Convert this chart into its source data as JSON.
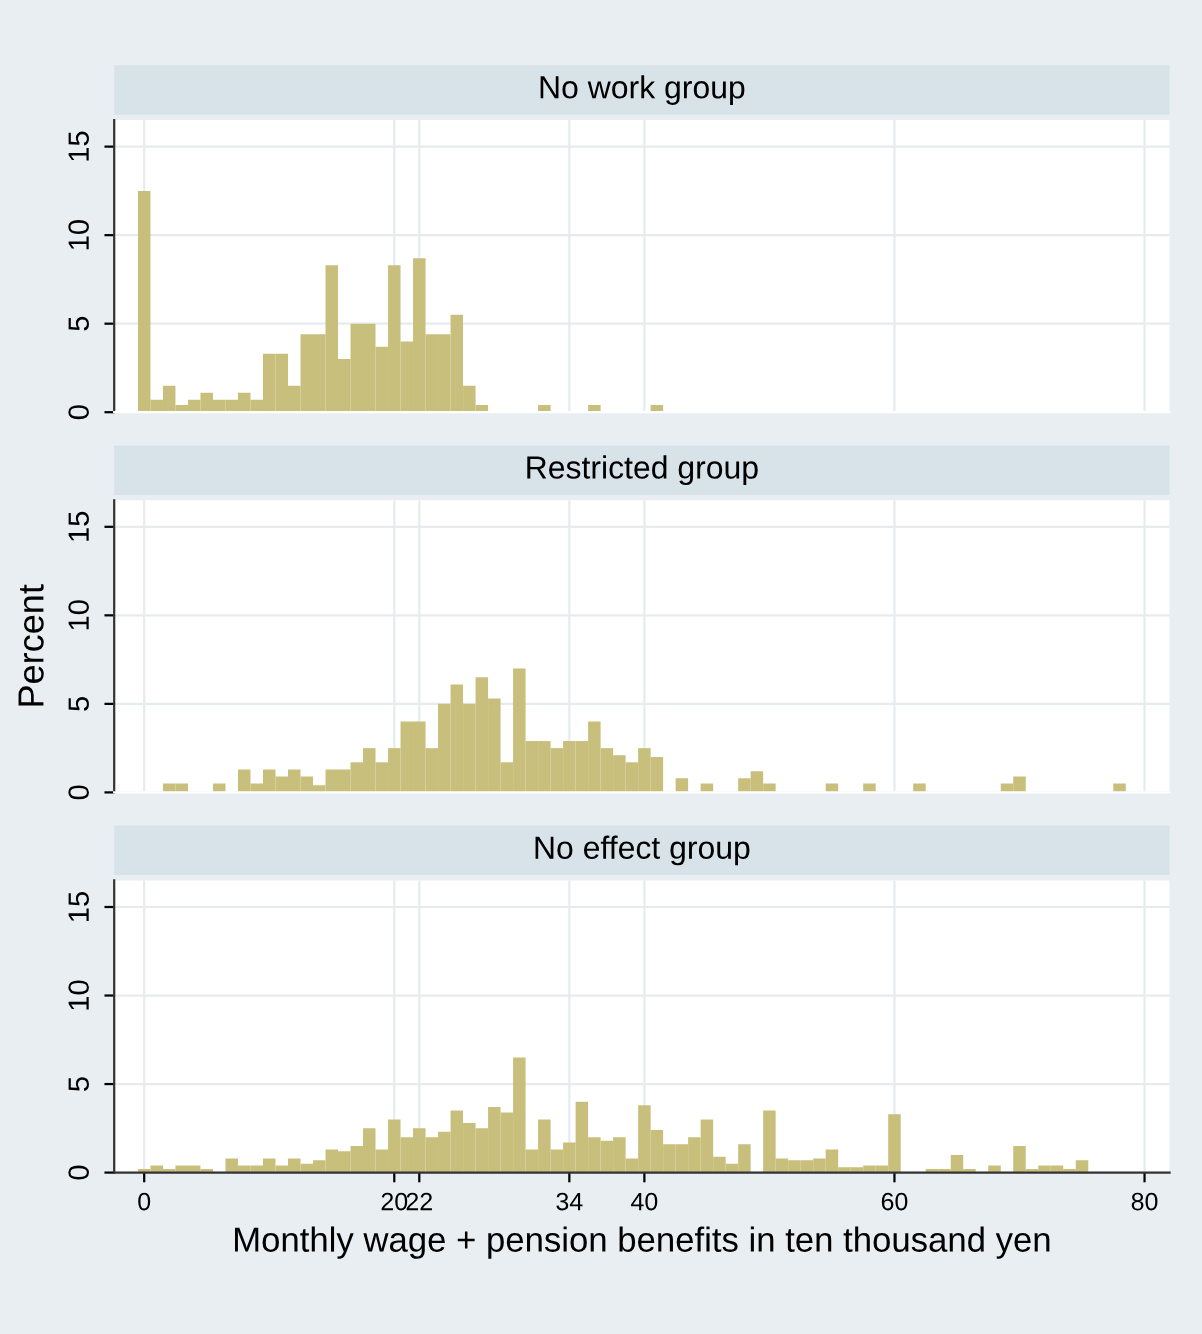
{
  "chart_data": [
    {
      "type": "histogram",
      "title": "No work group",
      "color": "#c8bf7c",
      "grid": true,
      "tick_labels": "y",
      "bins": [
        -0.5,
        0.5,
        1.5,
        2.5,
        3.5,
        4.5,
        5.5,
        6.5,
        7.5,
        8.5,
        9.5,
        10.5,
        11.5,
        12.5,
        13.5,
        14.5,
        15.5,
        16.5,
        17.5,
        18.5,
        19.5,
        20.5,
        21.5,
        22.5,
        23.5,
        24.5,
        25.5,
        26.5,
        27.5,
        28.5,
        29.5,
        30.5,
        31.5,
        32.5,
        33.5,
        34.5,
        35.5,
        36.5,
        37.5,
        38.5,
        39.5,
        40.5,
        41.5,
        42.5,
        43.5,
        44.5,
        45.5,
        46.5,
        47.5,
        48.5,
        49.5,
        50.5,
        51.5,
        52.5,
        53.5,
        54.5,
        55.5,
        56.5,
        57.5,
        58.5,
        59.5,
        60.5,
        61.5,
        62.5,
        63.5,
        64.5,
        65.5,
        66.5,
        67.5,
        68.5,
        69.5,
        70.5,
        71.5,
        72.5,
        73.5,
        74.5,
        75.5,
        76.5,
        77.5,
        78.5
      ],
      "values": [
        12.5,
        0.7,
        1.5,
        0.4,
        0.7,
        1.1,
        0.7,
        0.7,
        1.1,
        0.7,
        3.3,
        3.3,
        1.5,
        4.4,
        4.4,
        8.3,
        3.0,
        5.0,
        5.0,
        3.7,
        8.3,
        4.0,
        8.7,
        4.4,
        4.4,
        5.5,
        1.5,
        0.4,
        0,
        0,
        0,
        0,
        0.4,
        0,
        0,
        0,
        0.4,
        0,
        0,
        0,
        0,
        0.4,
        0,
        0,
        0,
        0,
        0,
        0,
        0,
        0,
        0,
        0,
        0,
        0,
        0,
        0,
        0,
        0,
        0,
        0,
        0,
        0,
        0,
        0,
        0,
        0,
        0,
        0,
        0,
        0,
        0,
        0,
        0,
        0,
        0,
        0,
        0,
        0,
        0
      ],
      "xlim": [
        -2.4,
        82
      ],
      "xticks": [
        0,
        20,
        22,
        34,
        40,
        60,
        80
      ],
      "ylim": [
        0,
        16.5
      ],
      "yticks": [
        0,
        5,
        10,
        15
      ]
    },
    {
      "type": "histogram",
      "title": "Restricted group",
      "ylabel": "Percent",
      "color": "#c8bf7c",
      "grid": true,
      "tick_labels": "y",
      "bins": [
        -0.5,
        0.5,
        1.5,
        2.5,
        3.5,
        4.5,
        5.5,
        6.5,
        7.5,
        8.5,
        9.5,
        10.5,
        11.5,
        12.5,
        13.5,
        14.5,
        15.5,
        16.5,
        17.5,
        18.5,
        19.5,
        20.5,
        21.5,
        22.5,
        23.5,
        24.5,
        25.5,
        26.5,
        27.5,
        28.5,
        29.5,
        30.5,
        31.5,
        32.5,
        33.5,
        34.5,
        35.5,
        36.5,
        37.5,
        38.5,
        39.5,
        40.5,
        41.5,
        42.5,
        43.5,
        44.5,
        45.5,
        46.5,
        47.5,
        48.5,
        49.5,
        50.5,
        51.5,
        52.5,
        53.5,
        54.5,
        55.5,
        56.5,
        57.5,
        58.5,
        59.5,
        60.5,
        61.5,
        62.5,
        63.5,
        64.5,
        65.5,
        66.5,
        67.5,
        68.5,
        69.5,
        70.5,
        71.5,
        72.5,
        73.5,
        74.5,
        75.5,
        76.5,
        77.5,
        78.5
      ],
      "values": [
        0,
        0,
        0.5,
        0.5,
        0,
        0,
        0.5,
        0,
        1.3,
        0.5,
        1.3,
        0.9,
        1.3,
        0.9,
        0.4,
        1.3,
        1.3,
        1.7,
        2.5,
        1.7,
        2.5,
        4.0,
        4.0,
        2.5,
        5.0,
        6.1,
        5.0,
        6.5,
        5.3,
        1.7,
        7.0,
        2.9,
        2.9,
        2.5,
        2.9,
        2.9,
        4.0,
        2.5,
        2.1,
        1.7,
        2.5,
        2.0,
        0,
        0.8,
        0,
        0.5,
        0,
        0,
        0.8,
        1.2,
        0.5,
        0,
        0,
        0,
        0,
        0.5,
        0,
        0,
        0.5,
        0,
        0,
        0,
        0.5,
        0,
        0,
        0,
        0,
        0,
        0,
        0.5,
        0.9,
        0,
        0,
        0,
        0,
        0,
        0,
        0,
        0.5
      ],
      "xlim": [
        -2.4,
        82
      ],
      "xticks": [
        0,
        20,
        22,
        34,
        40,
        60,
        80
      ],
      "ylim": [
        0,
        16.5
      ],
      "yticks": [
        0,
        5,
        10,
        15
      ]
    },
    {
      "type": "histogram",
      "title": "No effect group",
      "xlabel": "Monthly wage + pension benefits in ten thousand yen",
      "color": "#c8bf7c",
      "grid": true,
      "bins": [
        -0.5,
        0.5,
        1.5,
        2.5,
        3.5,
        4.5,
        5.5,
        6.5,
        7.5,
        8.5,
        9.5,
        10.5,
        11.5,
        12.5,
        13.5,
        14.5,
        15.5,
        16.5,
        17.5,
        18.5,
        19.5,
        20.5,
        21.5,
        22.5,
        23.5,
        24.5,
        25.5,
        26.5,
        27.5,
        28.5,
        29.5,
        30.5,
        31.5,
        32.5,
        33.5,
        34.5,
        35.5,
        36.5,
        37.5,
        38.5,
        39.5,
        40.5,
        41.5,
        42.5,
        43.5,
        44.5,
        45.5,
        46.5,
        47.5,
        48.5,
        49.5,
        50.5,
        51.5,
        52.5,
        53.5,
        54.5,
        55.5,
        56.5,
        57.5,
        58.5,
        59.5,
        60.5,
        61.5,
        62.5,
        63.5,
        64.5,
        65.5,
        66.5,
        67.5,
        68.5,
        69.5,
        70.5,
        71.5,
        72.5,
        73.5,
        74.5,
        75.5,
        76.5,
        77.5,
        78.5
      ],
      "values": [
        0.2,
        0.4,
        0.2,
        0.4,
        0.4,
        0.2,
        0,
        0.8,
        0.4,
        0.4,
        0.8,
        0.4,
        0.8,
        0.5,
        0.7,
        1.3,
        1.2,
        1.5,
        2.5,
        1.3,
        3.0,
        2.0,
        2.5,
        2.0,
        2.3,
        3.5,
        2.8,
        2.5,
        3.7,
        3.4,
        6.5,
        1.3,
        3.0,
        1.3,
        1.7,
        4.0,
        2.0,
        1.8,
        2.0,
        0.8,
        3.8,
        2.4,
        1.6,
        1.6,
        2.0,
        3.0,
        0.9,
        0.5,
        1.6,
        0,
        3.5,
        0.8,
        0.7,
        0.7,
        0.8,
        1.3,
        0.3,
        0.3,
        0.4,
        0.4,
        3.3,
        0,
        0,
        0.2,
        0.2,
        1.0,
        0.2,
        0,
        0.4,
        0,
        1.5,
        0.2,
        0.4,
        0.4,
        0.2,
        0.7,
        0,
        0,
        0
      ],
      "xlim": [
        -2.4,
        82
      ],
      "xticks": [
        0,
        20,
        22,
        34,
        40,
        60,
        80
      ],
      "ylim": [
        0,
        16.5
      ],
      "yticks": [
        0,
        5,
        10,
        15
      ]
    }
  ]
}
